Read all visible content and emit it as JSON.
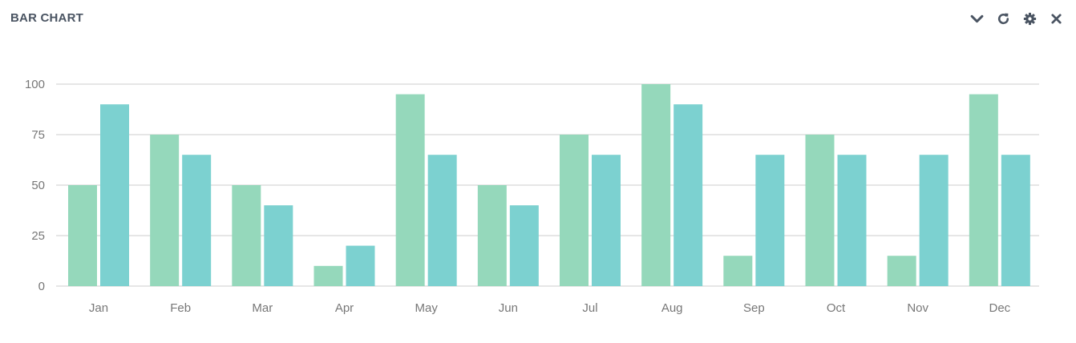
{
  "panel": {
    "title": "BAR CHART",
    "tools": [
      {
        "name": "collapse",
        "icon": "chevron-down-icon"
      },
      {
        "name": "refresh",
        "icon": "refresh-icon"
      },
      {
        "name": "settings",
        "icon": "gear-icon"
      },
      {
        "name": "close",
        "icon": "close-icon"
      }
    ],
    "icon_color": "#4a5462"
  },
  "chart_data": {
    "type": "bar",
    "title": "BAR CHART",
    "xlabel": "",
    "ylabel": "",
    "categories": [
      "Jan",
      "Feb",
      "Mar",
      "Apr",
      "May",
      "Jun",
      "Jul",
      "Aug",
      "Sep",
      "Oct",
      "Nov",
      "Dec"
    ],
    "series": [
      {
        "values": [
          50,
          75,
          50,
          10,
          95,
          50,
          75,
          100,
          15,
          75,
          15,
          95
        ],
        "color": "#95d8bb"
      },
      {
        "values": [
          90,
          65,
          40,
          20,
          65,
          40,
          65,
          90,
          65,
          65,
          65,
          65
        ],
        "color": "#7cd1d0"
      }
    ],
    "ylim": [
      0,
      100
    ],
    "yticks": [
      0,
      25,
      50,
      75,
      100
    ],
    "grid": true,
    "grid_color": "#cccccc",
    "legend": "none"
  }
}
